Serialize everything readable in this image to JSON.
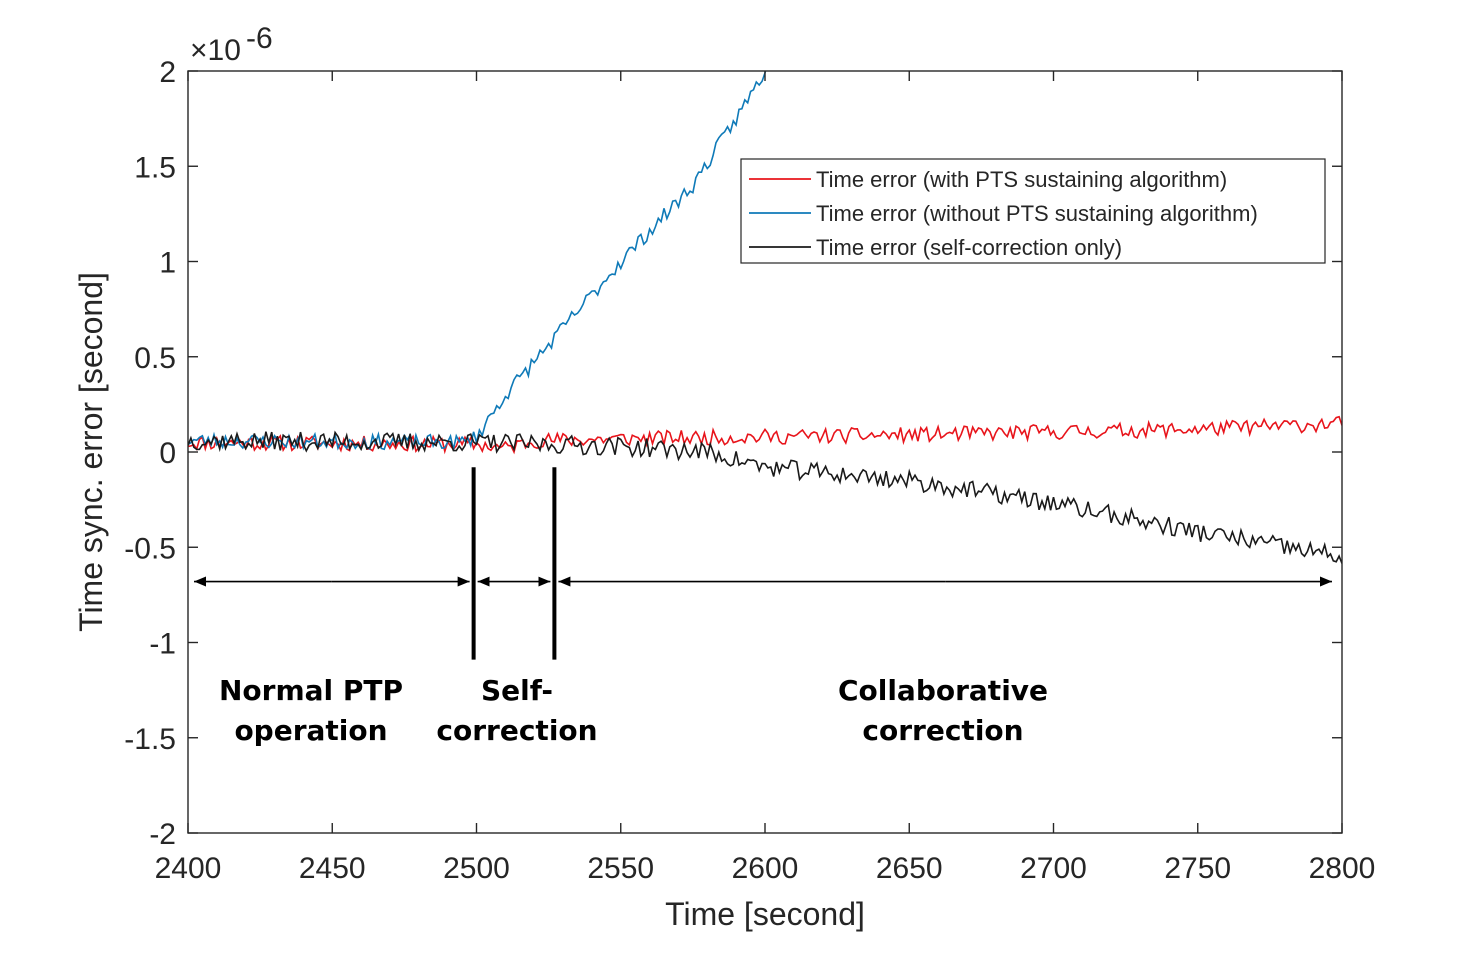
{
  "chart_data": {
    "type": "line",
    "title": "",
    "xlabel": "Time [second]",
    "ylabel": "Time sync. error [second]",
    "y_exponent_base": "×10",
    "y_exponent_power": "-6",
    "xlim": [
      2400,
      2800
    ],
    "ylim": [
      -2,
      2
    ],
    "x_ticks": [
      2400,
      2450,
      2500,
      2550,
      2600,
      2650,
      2700,
      2750,
      2800
    ],
    "y_ticks": [
      2,
      1.5,
      1,
      0.5,
      0,
      -0.5,
      -1,
      -1.5,
      -2
    ],
    "x_tick_labels": [
      "2400",
      "2450",
      "2500",
      "2550",
      "2600",
      "2650",
      "2700",
      "2750",
      "2800"
    ],
    "y_tick_labels": [
      "2",
      "1.5",
      "1",
      "0.5",
      "0",
      "-0.5",
      "-1",
      "-1.5",
      "-2"
    ],
    "grid": false,
    "legend_position": "top-right",
    "series": [
      {
        "name": "Time error (with PTS sustaining algorithm)",
        "color": "#e8141b",
        "anchors": [
          [
            2400,
            0.05
          ],
          [
            2500,
            0.04
          ],
          [
            2510,
            0.02
          ],
          [
            2520,
            0.06
          ],
          [
            2550,
            0.07
          ],
          [
            2650,
            0.09
          ],
          [
            2750,
            0.12
          ],
          [
            2800,
            0.15
          ]
        ],
        "noise": 0.04,
        "seed": 11
      },
      {
        "name": "Time error (without PTS sustaining algorithm)",
        "color": "#0f7ab8",
        "anchors": [
          [
            2400,
            0.06
          ],
          [
            2495,
            0.05
          ],
          [
            2500,
            0.08
          ],
          [
            2510,
            0.3
          ],
          [
            2530,
            0.65
          ],
          [
            2550,
            1.0
          ],
          [
            2575,
            1.4
          ],
          [
            2590,
            1.75
          ],
          [
            2600,
            2.0
          ],
          [
            2601,
            2.02
          ]
        ],
        "noise": 0.04,
        "seed": 23
      },
      {
        "name": "Time error (self-correction only)",
        "color": "#1a1a1a",
        "anchors": [
          [
            2400,
            0.06
          ],
          [
            2500,
            0.05
          ],
          [
            2550,
            0.03
          ],
          [
            2580,
            0.0
          ],
          [
            2600,
            -0.08
          ],
          [
            2650,
            -0.15
          ],
          [
            2700,
            -0.27
          ],
          [
            2750,
            -0.42
          ],
          [
            2800,
            -0.55
          ]
        ],
        "noise": 0.05,
        "seed": 37
      }
    ],
    "annotations": {
      "regions": [
        {
          "lines": [
            "Normal  PTP",
            "operation"
          ],
          "x_start": 2400,
          "x_end": 2499
        },
        {
          "lines": [
            "Self-",
            "correction"
          ],
          "x_start": 2499,
          "x_end": 2527
        },
        {
          "lines": [
            "Collaborative",
            "correction"
          ],
          "x_start": 2527,
          "x_end": 2800
        }
      ],
      "dividers": [
        2499,
        2527
      ],
      "arrow_y": -0.68
    }
  }
}
